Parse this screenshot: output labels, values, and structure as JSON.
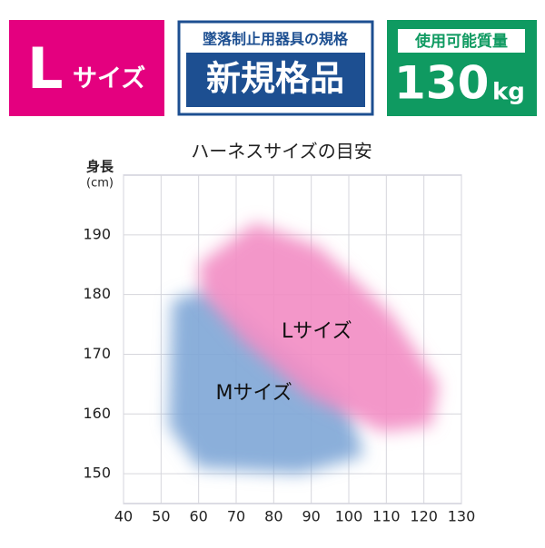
{
  "badges": {
    "size": {
      "big": "L",
      "small": "サイズ"
    },
    "standard": {
      "top": "墜落制止用器具の規格",
      "bottom": "新規格品"
    },
    "capacity": {
      "top": "使用可能質量",
      "number": "130",
      "unit": "kg"
    }
  },
  "chart_data": {
    "type": "region",
    "title": "ハーネスサイズの目安",
    "y_label": "身長",
    "y_unit": "(cm)",
    "xlim": [
      40,
      130
    ],
    "xticks": [
      40,
      50,
      60,
      70,
      80,
      90,
      100,
      110,
      120,
      130
    ],
    "ylim": [
      145,
      200
    ],
    "yticks": [
      150,
      160,
      170,
      180,
      190
    ],
    "grid": true,
    "series": [
      {
        "name": "Mサイズ",
        "color": "#7ea6d6",
        "x": [
          53,
          63,
          80,
          99,
          104,
          87,
          60,
          52
        ],
        "y": [
          179,
          181,
          172,
          163,
          153,
          150,
          151,
          158
        ]
      },
      {
        "name": "Lサイズ",
        "color": "#f28cc3",
        "x": [
          60,
          75,
          92,
          111,
          124,
          122,
          109,
          89,
          72,
          61
        ],
        "y": [
          185,
          192,
          188,
          177,
          165,
          158,
          157,
          163,
          172,
          180
        ]
      }
    ]
  }
}
